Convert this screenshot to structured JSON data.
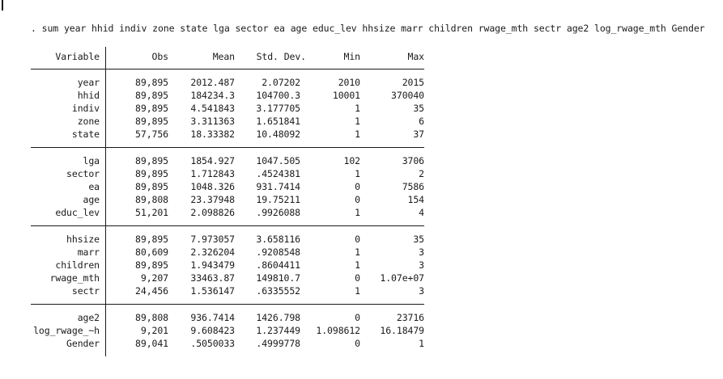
{
  "command": ". sum year hhid indiv zone state lga sector ea age educ_lev hhsize marr children rwage_mth sectr age2 log_rwage_mth Gender",
  "table": {
    "headers": {
      "variable": "Variable",
      "obs": "Obs",
      "mean": "Mean",
      "std_dev": "Std. Dev.",
      "min": "Min",
      "max": "Max"
    },
    "groups": [
      {
        "rows": [
          {
            "variable": "year",
            "obs": "89,895",
            "mean": "2012.487",
            "std_dev": "2.07202",
            "min": "2010",
            "max": "2015"
          },
          {
            "variable": "hhid",
            "obs": "89,895",
            "mean": "184234.3",
            "std_dev": "104700.3",
            "min": "10001",
            "max": "370040"
          },
          {
            "variable": "indiv",
            "obs": "89,895",
            "mean": "4.541843",
            "std_dev": "3.177705",
            "min": "1",
            "max": "35"
          },
          {
            "variable": "zone",
            "obs": "89,895",
            "mean": "3.311363",
            "std_dev": "1.651841",
            "min": "1",
            "max": "6"
          },
          {
            "variable": "state",
            "obs": "57,756",
            "mean": "18.33382",
            "std_dev": "10.48092",
            "min": "1",
            "max": "37"
          }
        ]
      },
      {
        "rows": [
          {
            "variable": "lga",
            "obs": "89,895",
            "mean": "1854.927",
            "std_dev": "1047.505",
            "min": "102",
            "max": "3706"
          },
          {
            "variable": "sector",
            "obs": "89,895",
            "mean": "1.712843",
            "std_dev": ".4524381",
            "min": "1",
            "max": "2"
          },
          {
            "variable": "ea",
            "obs": "89,895",
            "mean": "1048.326",
            "std_dev": "931.7414",
            "min": "0",
            "max": "7586"
          },
          {
            "variable": "age",
            "obs": "89,808",
            "mean": "23.37948",
            "std_dev": "19.75211",
            "min": "0",
            "max": "154"
          },
          {
            "variable": "educ_lev",
            "obs": "51,201",
            "mean": "2.098826",
            "std_dev": ".9926088",
            "min": "1",
            "max": "4"
          }
        ]
      },
      {
        "rows": [
          {
            "variable": "hhsize",
            "obs": "89,895",
            "mean": "7.973057",
            "std_dev": "3.658116",
            "min": "0",
            "max": "35"
          },
          {
            "variable": "marr",
            "obs": "80,609",
            "mean": "2.326204",
            "std_dev": ".9208548",
            "min": "1",
            "max": "3"
          },
          {
            "variable": "children",
            "obs": "89,895",
            "mean": "1.943479",
            "std_dev": ".8604411",
            "min": "1",
            "max": "3"
          },
          {
            "variable": "rwage_mth",
            "obs": "9,207",
            "mean": "33463.87",
            "std_dev": "149810.7",
            "min": "0",
            "max": "1.07e+07"
          },
          {
            "variable": "sectr",
            "obs": "24,456",
            "mean": "1.536147",
            "std_dev": ".6335552",
            "min": "1",
            "max": "3"
          }
        ]
      },
      {
        "rows": [
          {
            "variable": "age2",
            "obs": "89,808",
            "mean": "936.7414",
            "std_dev": "1426.798",
            "min": "0",
            "max": "23716"
          },
          {
            "variable": "log_rwage_~h",
            "obs": "9,201",
            "mean": "9.608423",
            "std_dev": "1.237449",
            "min": "1.098612",
            "max": "16.18479"
          },
          {
            "variable": "Gender",
            "obs": "89,041",
            "mean": ".5050033",
            "std_dev": ".4999778",
            "min": "0",
            "max": "1"
          }
        ]
      }
    ]
  },
  "colors": {
    "text": "#1a1a1a",
    "rule": "#1a1a1a",
    "background": "#ffffff"
  }
}
